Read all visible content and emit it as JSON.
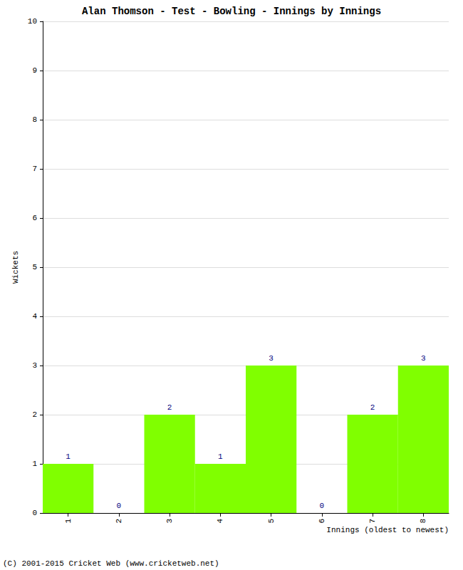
{
  "chart_data": {
    "type": "bar",
    "title": "Alan Thomson - Test - Bowling - Innings by Innings",
    "x_label": "Innings (oldest to newest)",
    "y_label": "Wickets",
    "categories": [
      "1",
      "2",
      "3",
      "4",
      "5",
      "6",
      "7",
      "8"
    ],
    "values": [
      1,
      0,
      2,
      1,
      3,
      0,
      2,
      3
    ],
    "color": "#80ff00",
    "ylim": [
      0,
      10
    ],
    "yticks": [
      0,
      1,
      2,
      3,
      4,
      5,
      6,
      7,
      8,
      9,
      10
    ],
    "grid": true,
    "data_labels": true,
    "annotations": [
      "(C) 2001-2015 Cricket Web (www.cricketweb.net)"
    ]
  }
}
